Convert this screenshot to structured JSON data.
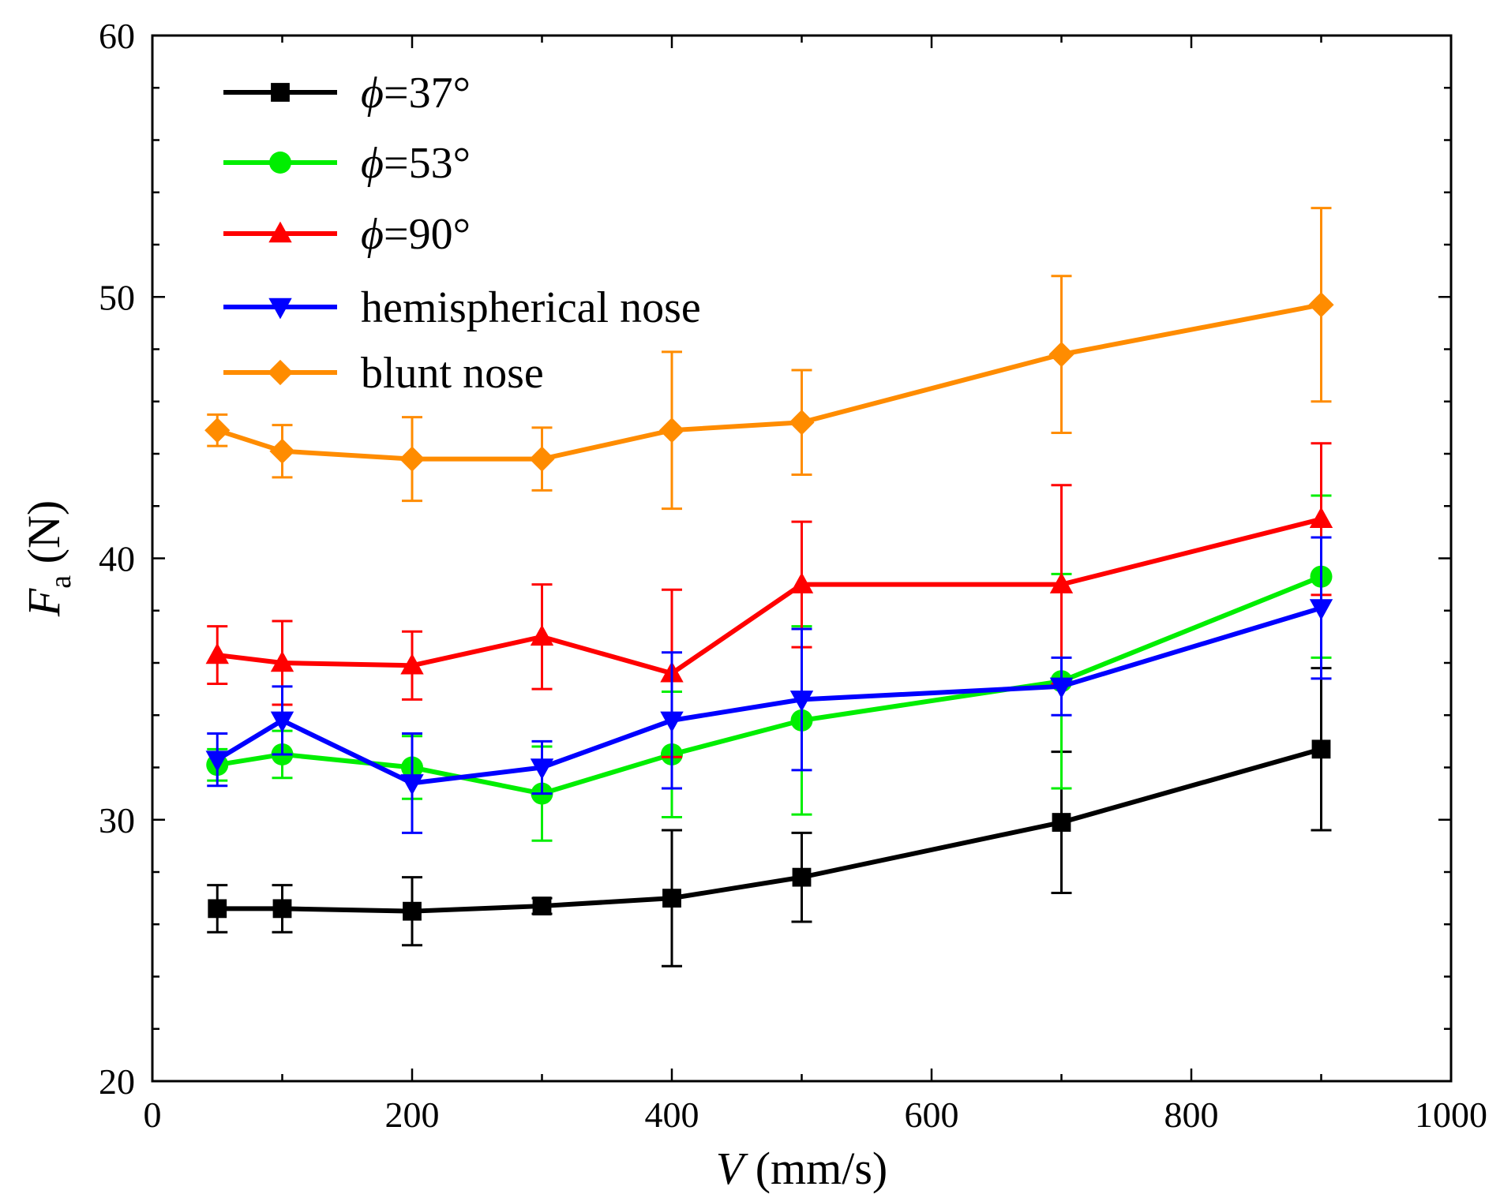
{
  "chart_data": {
    "type": "line",
    "x": [
      50,
      100,
      200,
      300,
      400,
      500,
      700,
      900
    ],
    "xlabel": {
      "var": "V",
      "unit": " (mm/s)"
    },
    "ylabel": {
      "var": "F",
      "sub": "a",
      "unit": " (N)"
    },
    "xlim": [
      0,
      1000
    ],
    "ylim": [
      20,
      60
    ],
    "xticks": [
      0,
      200,
      400,
      600,
      800,
      1000
    ],
    "yticks": [
      20,
      30,
      40,
      50,
      60
    ],
    "xtick_labels": [
      "0",
      "200",
      "400",
      "600",
      "800",
      "1000"
    ],
    "ytick_labels": [
      "20",
      "30",
      "40",
      "50",
      "60"
    ],
    "grid": false,
    "legend_position": "top-left",
    "series": [
      {
        "name": "ϕ=37°",
        "label_var": "ϕ",
        "label_rest": "=37°",
        "color": "#000000",
        "marker": "square",
        "values": [
          26.6,
          26.6,
          26.5,
          26.7,
          27.0,
          27.8,
          29.9,
          32.7
        ],
        "errors": [
          0.9,
          0.9,
          1.3,
          0.3,
          2.6,
          1.7,
          2.7,
          3.1
        ]
      },
      {
        "name": "ϕ=53°",
        "label_var": "ϕ",
        "label_rest": "=53°",
        "color": "#00ee00",
        "marker": "circle",
        "values": [
          32.1,
          32.5,
          32.0,
          31.0,
          32.5,
          33.8,
          35.3,
          39.3
        ],
        "errors": [
          0.6,
          0.9,
          1.2,
          1.8,
          2.4,
          3.6,
          4.1,
          3.1
        ]
      },
      {
        "name": "ϕ=90°",
        "label_var": "ϕ",
        "label_rest": "=90°",
        "color": "#ff0000",
        "marker": "triangle-up",
        "values": [
          36.3,
          36.0,
          35.9,
          37.0,
          35.6,
          39.0,
          39.0,
          41.5
        ],
        "errors": [
          1.1,
          1.6,
          1.3,
          2.0,
          3.2,
          2.4,
          3.8,
          2.9
        ]
      },
      {
        "name": "hemispherical nose",
        "label_var": "",
        "label_rest": "hemispherical nose",
        "color": "#0000ff",
        "marker": "triangle-down",
        "values": [
          32.3,
          33.8,
          31.4,
          32.0,
          33.8,
          34.6,
          35.1,
          38.1
        ],
        "errors": [
          1.0,
          1.3,
          1.9,
          1.0,
          2.6,
          2.7,
          1.1,
          2.7
        ]
      },
      {
        "name": "blunt nose",
        "label_var": "",
        "label_rest": "blunt nose",
        "color": "#ff8c00",
        "marker": "diamond",
        "values": [
          44.9,
          44.1,
          43.8,
          43.8,
          44.9,
          45.2,
          47.8,
          49.7
        ],
        "errors": [
          0.6,
          1.0,
          1.6,
          1.2,
          3.0,
          2.0,
          3.0,
          3.7
        ]
      }
    ]
  }
}
